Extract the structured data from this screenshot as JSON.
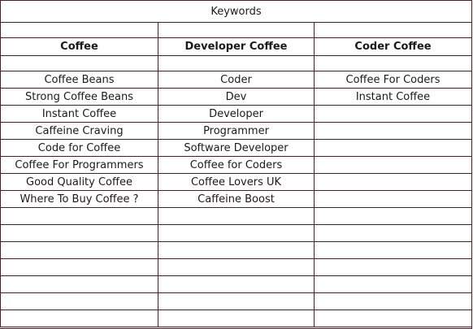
{
  "title": "Keywords",
  "columns": [
    "Coffee",
    "Developer Coffee",
    "Coder Coffee"
  ],
  "rows": [
    [
      "Coffee Beans",
      "Coder",
      "Coffee For Coders"
    ],
    [
      "Strong Coffee Beans",
      "Dev",
      "Instant Coffee"
    ],
    [
      "Instant Coffee",
      "Developer",
      ""
    ],
    [
      "Caffeine Craving",
      "Programmer",
      ""
    ],
    [
      "Code for Coffee",
      "Software Developer",
      ""
    ],
    [
      "Coffee For Programmers",
      "Coffee for Coders",
      ""
    ],
    [
      "Good Quality Coffee",
      "Coffee Lovers UK",
      ""
    ],
    [
      "Where To Buy Coffee ?",
      "Caffeine Boost",
      ""
    ]
  ],
  "empty_rows": 7,
  "colors": {
    "grid_line": "#4a1f2a",
    "text": "#1a1a1a",
    "background": "#ffffff"
  }
}
